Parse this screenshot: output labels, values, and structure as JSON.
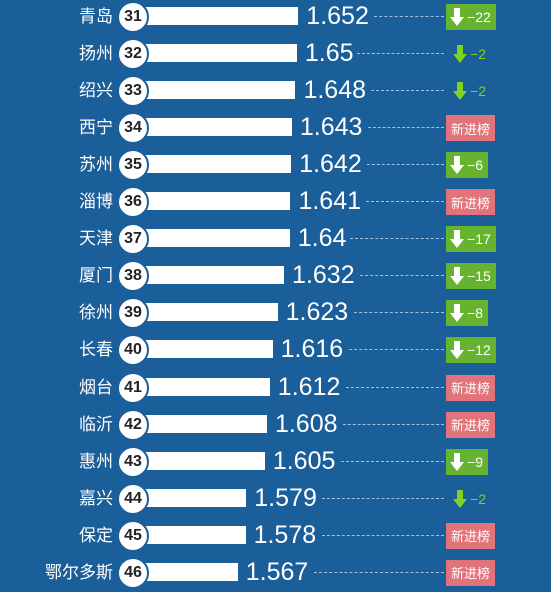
{
  "chart_data": {
    "type": "bar",
    "orientation": "horizontal",
    "rows": [
      {
        "city": "青岛",
        "rank": "31",
        "value": "1.652",
        "change": {
          "kind": "down-box",
          "amount": "22"
        }
      },
      {
        "city": "扬州",
        "rank": "32",
        "value": "1.65",
        "change": {
          "kind": "down-plain",
          "amount": "2"
        }
      },
      {
        "city": "绍兴",
        "rank": "33",
        "value": "1.648",
        "change": {
          "kind": "down-plain",
          "amount": "2"
        }
      },
      {
        "city": "西宁",
        "rank": "34",
        "value": "1.643",
        "change": {
          "kind": "new",
          "label": "新进榜"
        }
      },
      {
        "city": "苏州",
        "rank": "35",
        "value": "1.642",
        "change": {
          "kind": "down-box",
          "amount": "6"
        }
      },
      {
        "city": "淄博",
        "rank": "36",
        "value": "1.641",
        "change": {
          "kind": "new",
          "label": "新进榜"
        }
      },
      {
        "city": "天津",
        "rank": "37",
        "value": "1.64",
        "change": {
          "kind": "down-box",
          "amount": "17"
        }
      },
      {
        "city": "厦门",
        "rank": "38",
        "value": "1.632",
        "change": {
          "kind": "down-box",
          "amount": "15"
        }
      },
      {
        "city": "徐州",
        "rank": "39",
        "value": "1.623",
        "change": {
          "kind": "down-box",
          "amount": "8"
        }
      },
      {
        "city": "长春",
        "rank": "40",
        "value": "1.616",
        "change": {
          "kind": "down-box",
          "amount": "12"
        }
      },
      {
        "city": "烟台",
        "rank": "41",
        "value": "1.612",
        "change": {
          "kind": "new",
          "label": "新进榜"
        }
      },
      {
        "city": "临沂",
        "rank": "42",
        "value": "1.608",
        "change": {
          "kind": "new",
          "label": "新进榜"
        }
      },
      {
        "city": "惠州",
        "rank": "43",
        "value": "1.605",
        "change": {
          "kind": "down-box",
          "amount": "9"
        }
      },
      {
        "city": "嘉兴",
        "rank": "44",
        "value": "1.579",
        "change": {
          "kind": "down-plain",
          "amount": "2"
        }
      },
      {
        "city": "保定",
        "rank": "45",
        "value": "1.578",
        "change": {
          "kind": "new",
          "label": "新进榜"
        }
      },
      {
        "city": "鄂尔多斯",
        "rank": "46",
        "value": "1.567",
        "change": {
          "kind": "new",
          "label": "新进榜"
        }
      }
    ],
    "value_range": [
      1.5,
      1.66
    ]
  },
  "colors": {
    "background": "#1a5e9a",
    "bar": "#ffffff",
    "down_badge": "#65b32e",
    "down_text": "#7ed321",
    "new_badge": "#e2737b"
  }
}
